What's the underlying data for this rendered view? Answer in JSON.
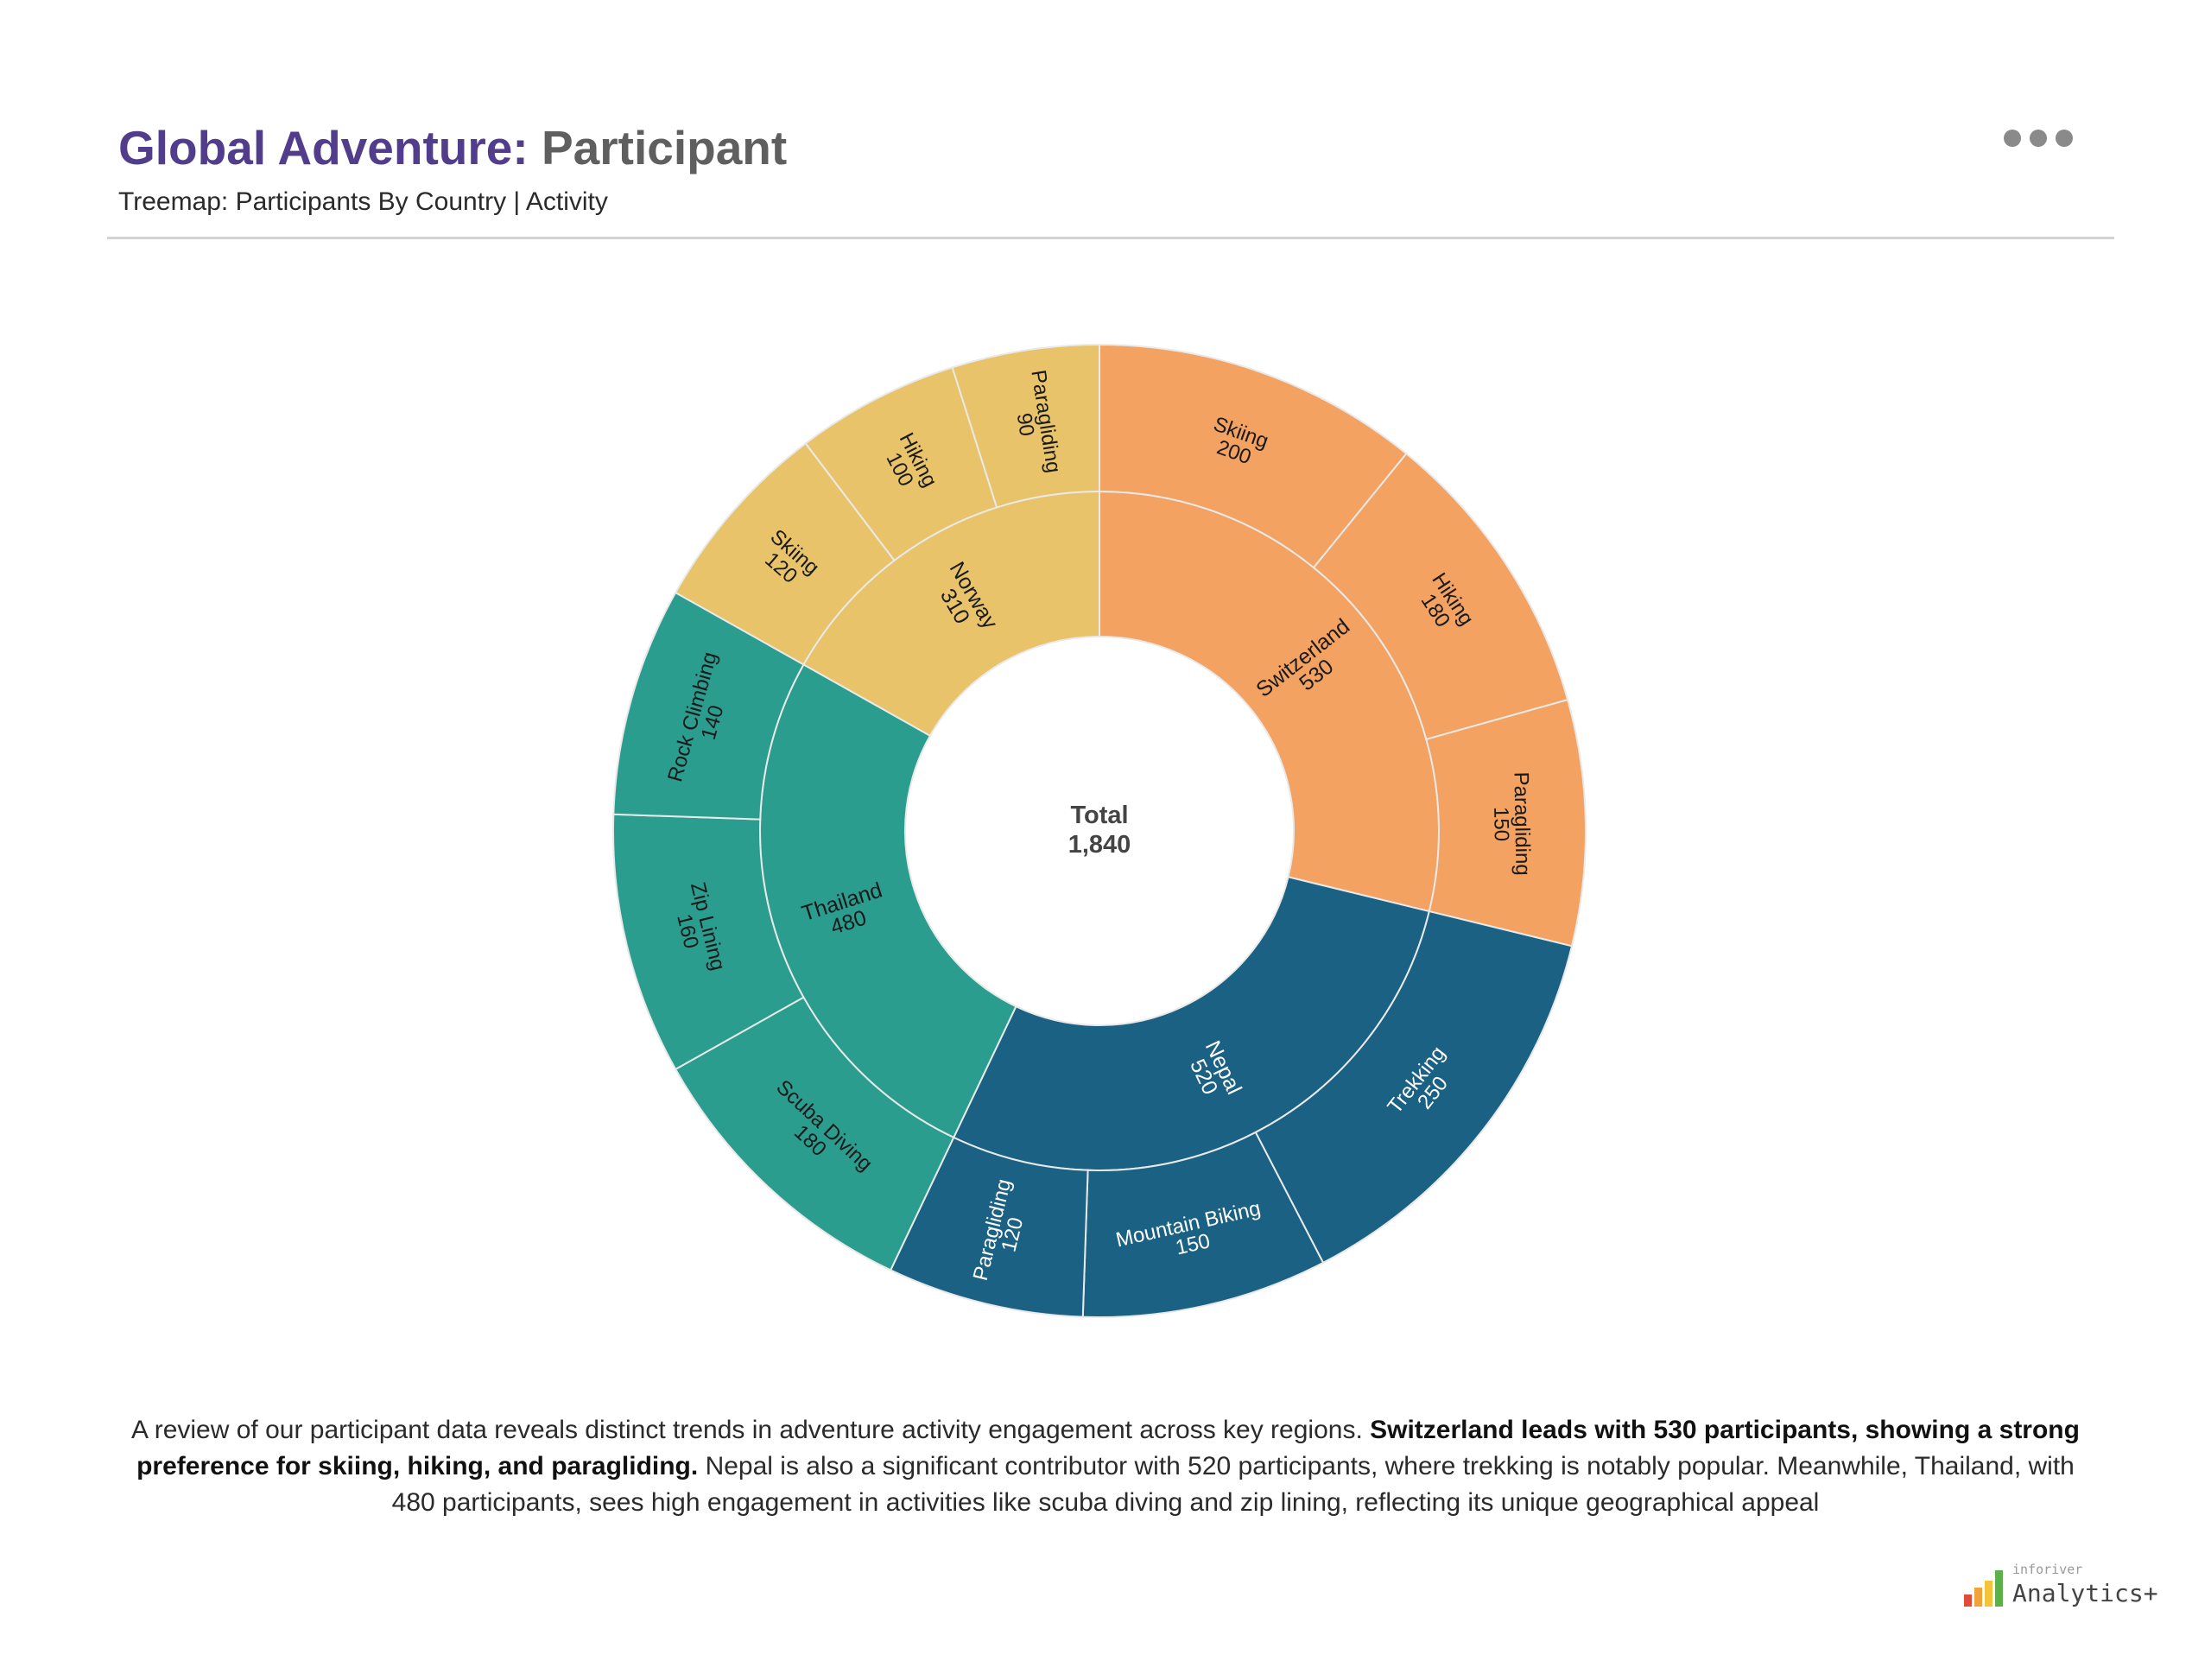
{
  "header": {
    "title_accent": "Global Adventure:",
    "title_rest": "Participant",
    "subtitle": "Treemap: Participants By Country | Activity",
    "menu_icon": "more-horizontal-icon"
  },
  "chart_data": {
    "type": "sunburst",
    "center": {
      "label": "Total",
      "value": "1,840"
    },
    "levels": [
      "Country",
      "Activity"
    ],
    "countries": [
      {
        "name": "Switzerland",
        "value": 530,
        "color": "#f3a261",
        "text_color": "#1a1a1a",
        "children": [
          {
            "name": "Skiing",
            "value": 200
          },
          {
            "name": "Hiking",
            "value": 180
          },
          {
            "name": "Paragliding",
            "value": 150
          }
        ]
      },
      {
        "name": "Nepal",
        "value": 520,
        "color": "#1a6183",
        "text_color": "#ffffff",
        "children": [
          {
            "name": "Trekking",
            "value": 250
          },
          {
            "name": "Mountain Biking",
            "value": 150
          },
          {
            "name": "Paragliding",
            "value": 120
          }
        ]
      },
      {
        "name": "Thailand",
        "value": 480,
        "color": "#2a9d8f",
        "text_color": "#1a1a1a",
        "children": [
          {
            "name": "Scuba Diving",
            "value": 180
          },
          {
            "name": "Zip Lining",
            "value": 160
          },
          {
            "name": "Rock Climbing",
            "value": 140
          }
        ]
      },
      {
        "name": "Norway",
        "value": 310,
        "color": "#e8c36a",
        "text_color": "#1a1a1a",
        "children": [
          {
            "name": "Skiing",
            "value": 120
          },
          {
            "name": "Hiking",
            "value": 100
          },
          {
            "name": "Paragliding",
            "value": 90
          }
        ]
      }
    ]
  },
  "narrative": {
    "part1": "A review of our participant data reveals distinct trends in adventure activity engagement across key regions. ",
    "bold": "Switzerland leads with 530 participants, showing a strong preference for skiing, hiking, and paragliding.",
    "part2": " Nepal is also a significant contributor with 520 participants, where trekking is notably popular. Meanwhile, Thailand, with 480 participants, sees high engagement in activities like scuba diving and zip lining, reflecting its unique geographical appeal"
  },
  "brand": {
    "small": "inforiver",
    "big": "Analytics+"
  }
}
